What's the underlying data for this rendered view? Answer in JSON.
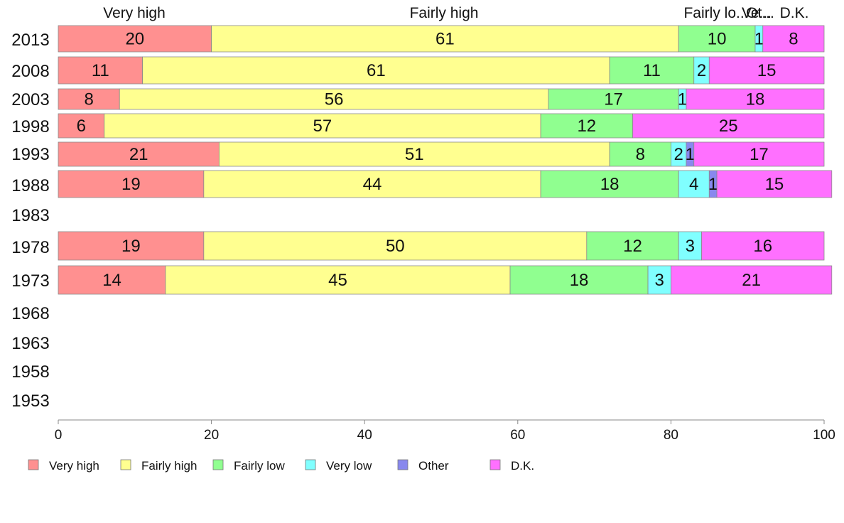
{
  "chart_data": {
    "type": "bar",
    "orientation": "horizontal",
    "stacked": true,
    "title": "",
    "xlabel": "",
    "ylabel": "",
    "xlim": [
      0,
      100
    ],
    "x_ticks": [
      0,
      20,
      40,
      60,
      80,
      100
    ],
    "categories": [
      "2013",
      "2008",
      "2003",
      "1998",
      "1993",
      "1988",
      "1983",
      "1978",
      "1973",
      "1968",
      "1963",
      "1958",
      "1953"
    ],
    "series": [
      {
        "name": "Very high",
        "color": "#ff9090",
        "values": [
          20,
          11,
          8,
          6,
          21,
          19,
          null,
          19,
          14,
          null,
          null,
          null,
          null
        ]
      },
      {
        "name": "Fairly high",
        "color": "#ffff90",
        "values": [
          61,
          61,
          56,
          57,
          51,
          44,
          null,
          50,
          45,
          null,
          null,
          null,
          null
        ]
      },
      {
        "name": "Fairly low",
        "color": "#90ff90",
        "values": [
          10,
          11,
          17,
          12,
          8,
          18,
          null,
          12,
          18,
          null,
          null,
          null,
          null
        ]
      },
      {
        "name": "Very low",
        "color": "#80ffff",
        "values": [
          1,
          2,
          1,
          0,
          2,
          4,
          null,
          3,
          3,
          null,
          null,
          null,
          null
        ]
      },
      {
        "name": "Other",
        "color": "#8888ee",
        "values": [
          0,
          0,
          0,
          0,
          1,
          1,
          null,
          0,
          0,
          null,
          null,
          null,
          null
        ]
      },
      {
        "name": "D.K.",
        "color": "#ff70ff",
        "values": [
          8,
          15,
          18,
          25,
          17,
          15,
          null,
          16,
          21,
          null,
          null,
          null,
          null
        ]
      }
    ],
    "top_labels": [
      "Very high",
      "Fairly high",
      "Fairly lo...",
      "Ve...",
      "Ot...",
      "D.K."
    ],
    "grid": false,
    "legend_position": "bottom"
  }
}
